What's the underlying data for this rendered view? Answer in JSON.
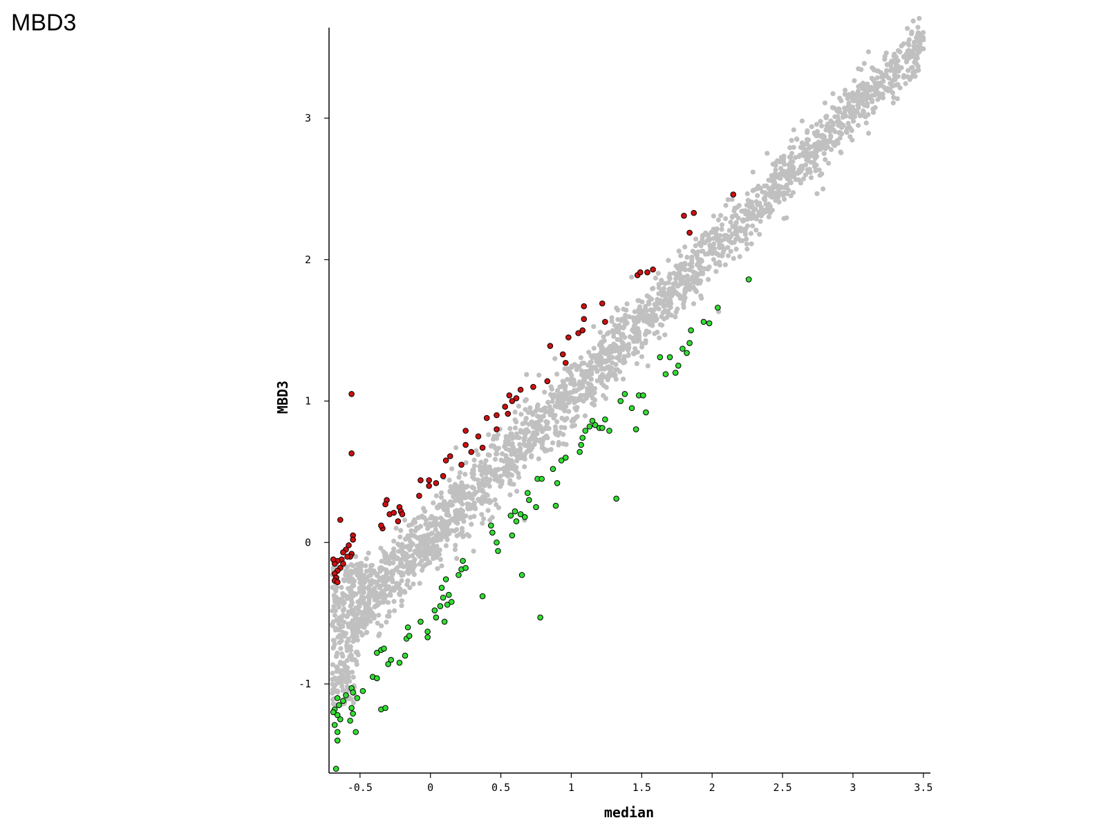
{
  "slide_title": "MBD3",
  "chart_data": {
    "type": "scatter",
    "title": "",
    "xlabel": "median",
    "ylabel": "MBD3",
    "xlim": [
      -0.72,
      3.55
    ],
    "ylim": [
      -1.63,
      3.64
    ],
    "x_ticks": [
      -0.5,
      0,
      0.5,
      1,
      1.5,
      2,
      2.5,
      3,
      3.5
    ],
    "x_tick_labels": [
      "-0.5",
      "0",
      "0.5",
      "1",
      "1.5",
      "2",
      "2.5",
      "3",
      "3.5"
    ],
    "y_ticks": [
      -1,
      0,
      1,
      2,
      3
    ],
    "y_tick_labels": [
      "-1",
      "0",
      "1",
      "2",
      "3"
    ],
    "grid": false,
    "legend": "none",
    "colors": {
      "background": "#c0c0c0",
      "up": "#cc1111",
      "down": "#33dd33",
      "outline": "#000000"
    },
    "series": [
      {
        "group": "background",
        "color": "#c0c0c0",
        "trend": {
          "x_start": -0.7,
          "x_end": 3.5,
          "slope": 1.0,
          "intercept": 0.05,
          "spread": 0.09
        },
        "extra_points": [
          [
            3.45,
            3.57
          ],
          [
            3.5,
            3.49
          ],
          [
            3.3,
            3.35
          ],
          [
            3.2,
            3.25
          ],
          [
            3.1,
            3.18
          ],
          [
            3.0,
            3.0
          ],
          [
            -0.66,
            -1.05
          ],
          [
            -0.68,
            -0.4
          ],
          [
            -0.6,
            -0.2
          ],
          [
            -0.5,
            -0.15
          ]
        ]
      },
      {
        "group": "up",
        "color": "#cc1111",
        "points": [
          [
            -0.56,
            1.05
          ],
          [
            -0.56,
            0.63
          ],
          [
            -0.64,
            0.16
          ],
          [
            -0.55,
            0.05
          ],
          [
            -0.55,
            0.02
          ],
          [
            -0.58,
            -0.02
          ],
          [
            -0.6,
            -0.05
          ],
          [
            -0.62,
            -0.07
          ],
          [
            -0.56,
            -0.08
          ],
          [
            -0.57,
            -0.1
          ],
          [
            -0.59,
            -0.1
          ],
          [
            -0.63,
            -0.12
          ],
          [
            -0.66,
            -0.13
          ],
          [
            -0.68,
            -0.15
          ],
          [
            -0.62,
            -0.15
          ],
          [
            -0.64,
            -0.18
          ],
          [
            -0.66,
            -0.2
          ],
          [
            -0.68,
            -0.22
          ],
          [
            -0.67,
            -0.25
          ],
          [
            -0.68,
            -0.27
          ],
          [
            -0.66,
            -0.28
          ],
          [
            -0.69,
            -0.12
          ],
          [
            -0.34,
            0.1
          ],
          [
            -0.35,
            0.12
          ],
          [
            -0.31,
            0.3
          ],
          [
            -0.32,
            0.27
          ],
          [
            -0.29,
            0.2
          ],
          [
            -0.26,
            0.21
          ],
          [
            -0.23,
            0.15
          ],
          [
            -0.22,
            0.25
          ],
          [
            -0.21,
            0.22
          ],
          [
            -0.2,
            0.2
          ],
          [
            -0.08,
            0.33
          ],
          [
            -0.07,
            0.44
          ],
          [
            -0.01,
            0.4
          ],
          [
            -0.01,
            0.44
          ],
          [
            0.04,
            0.42
          ],
          [
            0.09,
            0.47
          ],
          [
            0.11,
            0.58
          ],
          [
            0.14,
            0.61
          ],
          [
            0.22,
            0.55
          ],
          [
            0.25,
            0.69
          ],
          [
            0.25,
            0.79
          ],
          [
            0.29,
            0.64
          ],
          [
            0.34,
            0.75
          ],
          [
            0.37,
            0.67
          ],
          [
            0.4,
            0.88
          ],
          [
            0.47,
            0.8
          ],
          [
            0.47,
            0.9
          ],
          [
            0.53,
            0.96
          ],
          [
            0.55,
            0.91
          ],
          [
            0.56,
            1.04
          ],
          [
            0.58,
            1.0
          ],
          [
            0.61,
            1.02
          ],
          [
            0.64,
            1.08
          ],
          [
            0.73,
            1.1
          ],
          [
            0.83,
            1.14
          ],
          [
            0.85,
            1.39
          ],
          [
            0.94,
            1.33
          ],
          [
            0.96,
            1.27
          ],
          [
            0.98,
            1.45
          ],
          [
            1.05,
            1.48
          ],
          [
            1.08,
            1.5
          ],
          [
            1.09,
            1.58
          ],
          [
            1.09,
            1.67
          ],
          [
            1.22,
            1.69
          ],
          [
            1.24,
            1.56
          ],
          [
            1.47,
            1.89
          ],
          [
            1.49,
            1.91
          ],
          [
            1.54,
            1.91
          ],
          [
            1.58,
            1.93
          ],
          [
            1.8,
            2.31
          ],
          [
            1.84,
            2.19
          ],
          [
            1.87,
            2.33
          ],
          [
            2.15,
            2.46
          ]
        ]
      },
      {
        "group": "down",
        "color": "#33dd33",
        "points": [
          [
            -0.67,
            -1.6
          ],
          [
            -0.66,
            -1.4
          ],
          [
            -0.66,
            -1.34
          ],
          [
            -0.68,
            -1.29
          ],
          [
            -0.64,
            -1.25
          ],
          [
            -0.66,
            -1.22
          ],
          [
            -0.68,
            -1.18
          ],
          [
            -0.65,
            -1.15
          ],
          [
            -0.62,
            -1.12
          ],
          [
            -0.6,
            -1.08
          ],
          [
            -0.66,
            -1.1
          ],
          [
            -0.69,
            -1.2
          ],
          [
            -0.56,
            -1.03
          ],
          [
            -0.55,
            -1.06
          ],
          [
            -0.53,
            -1.34
          ],
          [
            -0.55,
            -1.21
          ],
          [
            -0.57,
            -1.26
          ],
          [
            -0.56,
            -1.17
          ],
          [
            -0.52,
            -1.1
          ],
          [
            -0.48,
            -1.05
          ],
          [
            -0.41,
            -0.95
          ],
          [
            -0.38,
            -0.96
          ],
          [
            -0.35,
            -1.18
          ],
          [
            -0.32,
            -1.17
          ],
          [
            -0.38,
            -0.78
          ],
          [
            -0.35,
            -0.76
          ],
          [
            -0.33,
            -0.75
          ],
          [
            -0.3,
            -0.86
          ],
          [
            -0.28,
            -0.83
          ],
          [
            -0.22,
            -0.85
          ],
          [
            -0.18,
            -0.8
          ],
          [
            -0.17,
            -0.68
          ],
          [
            -0.16,
            -0.6
          ],
          [
            -0.15,
            -0.66
          ],
          [
            -0.07,
            -0.56
          ],
          [
            -0.02,
            -0.63
          ],
          [
            -0.02,
            -0.67
          ],
          [
            0.03,
            -0.48
          ],
          [
            0.04,
            -0.53
          ],
          [
            0.07,
            -0.45
          ],
          [
            0.08,
            -0.32
          ],
          [
            0.09,
            -0.39
          ],
          [
            0.1,
            -0.56
          ],
          [
            0.11,
            -0.26
          ],
          [
            0.12,
            -0.44
          ],
          [
            0.13,
            -0.37
          ],
          [
            0.15,
            -0.42
          ],
          [
            0.2,
            -0.23
          ],
          [
            0.22,
            -0.19
          ],
          [
            0.23,
            -0.13
          ],
          [
            0.25,
            -0.18
          ],
          [
            0.37,
            -0.38
          ],
          [
            0.43,
            0.12
          ],
          [
            0.44,
            0.07
          ],
          [
            0.47,
            0.0
          ],
          [
            0.48,
            -0.06
          ],
          [
            0.57,
            0.19
          ],
          [
            0.58,
            0.05
          ],
          [
            0.6,
            0.22
          ],
          [
            0.61,
            0.15
          ],
          [
            0.64,
            0.2
          ],
          [
            0.65,
            -0.23
          ],
          [
            0.67,
            0.18
          ],
          [
            0.69,
            0.35
          ],
          [
            0.7,
            0.3
          ],
          [
            0.75,
            0.25
          ],
          [
            0.76,
            0.45
          ],
          [
            0.79,
            0.45
          ],
          [
            0.78,
            -0.53
          ],
          [
            0.87,
            0.52
          ],
          [
            0.89,
            0.26
          ],
          [
            0.9,
            0.42
          ],
          [
            0.93,
            0.58
          ],
          [
            0.96,
            0.6
          ],
          [
            1.06,
            0.64
          ],
          [
            1.07,
            0.69
          ],
          [
            1.08,
            0.74
          ],
          [
            1.1,
            0.79
          ],
          [
            1.13,
            0.82
          ],
          [
            1.15,
            0.86
          ],
          [
            1.17,
            0.83
          ],
          [
            1.2,
            0.81
          ],
          [
            1.22,
            0.81
          ],
          [
            1.24,
            0.87
          ],
          [
            1.27,
            0.79
          ],
          [
            1.32,
            0.31
          ],
          [
            1.35,
            1.0
          ],
          [
            1.38,
            1.05
          ],
          [
            1.43,
            0.95
          ],
          [
            1.46,
            0.8
          ],
          [
            1.48,
            1.04
          ],
          [
            1.51,
            1.04
          ],
          [
            1.53,
            0.92
          ],
          [
            1.63,
            1.31
          ],
          [
            1.67,
            1.19
          ],
          [
            1.7,
            1.31
          ],
          [
            1.74,
            1.2
          ],
          [
            1.76,
            1.25
          ],
          [
            1.79,
            1.37
          ],
          [
            1.82,
            1.34
          ],
          [
            1.84,
            1.41
          ],
          [
            1.85,
            1.5
          ],
          [
            1.94,
            1.56
          ],
          [
            1.98,
            1.55
          ],
          [
            2.04,
            1.66
          ],
          [
            2.26,
            1.86
          ]
        ]
      }
    ]
  }
}
